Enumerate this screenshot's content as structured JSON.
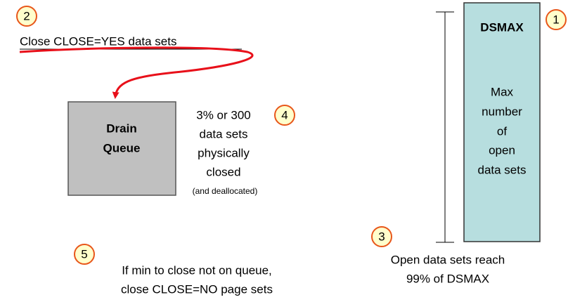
{
  "badges": [
    "1",
    "2",
    "3",
    "4",
    "5"
  ],
  "close_step": "Close CLOSE=YES data sets",
  "drain_queue": [
    "Drain",
    "Queue"
  ],
  "closed_note": {
    "lines": [
      "3% or 300",
      "data sets",
      "physically",
      "closed"
    ],
    "small": "(and deallocated)"
  },
  "fallback_note": [
    "If min to close not on queue,",
    "close CLOSE=NO page sets"
  ],
  "dsmax_box": {
    "title": "DSMAX",
    "lines": [
      "Max",
      "number",
      "of",
      "open",
      "data sets"
    ]
  },
  "threshold_note": [
    "Open data sets reach",
    "99% of DSMAX"
  ]
}
